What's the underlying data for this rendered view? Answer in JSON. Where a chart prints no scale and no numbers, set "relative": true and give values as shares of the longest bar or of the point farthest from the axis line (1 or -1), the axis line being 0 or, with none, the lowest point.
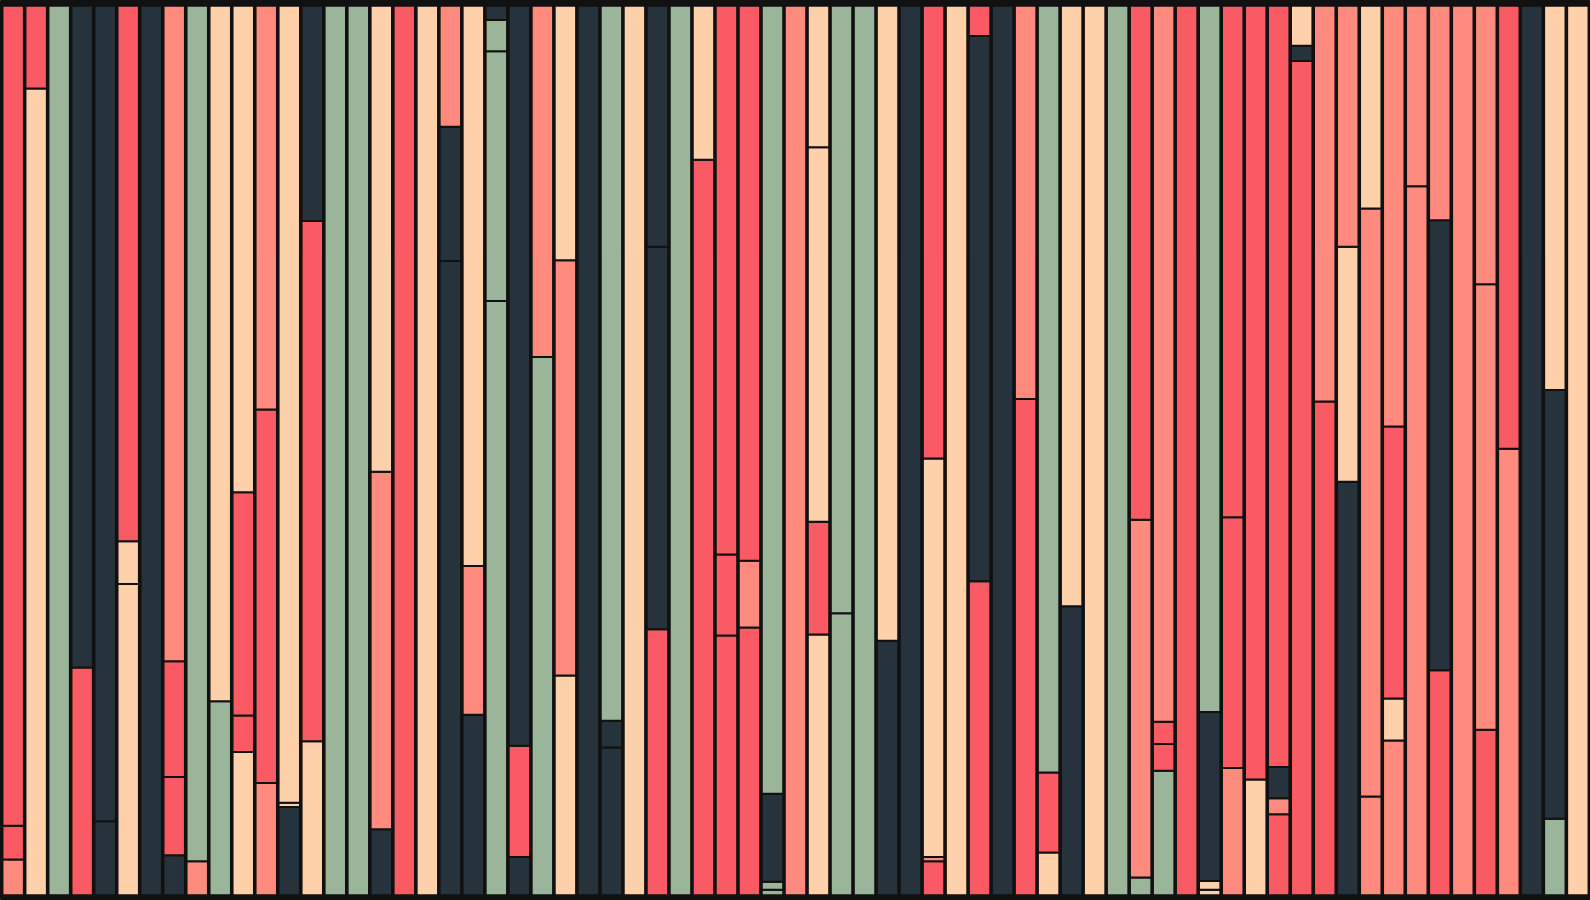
{
  "chart_data": {
    "type": "bar",
    "stacked": true,
    "relative": true,
    "categories": [
      null,
      null,
      null,
      null,
      null,
      null,
      null,
      null,
      null,
      null,
      null,
      null,
      null,
      null,
      null,
      null,
      null,
      null,
      null,
      null,
      null,
      null,
      null,
      null,
      null,
      null,
      null,
      null,
      null,
      null,
      null,
      null,
      null,
      null,
      null,
      null,
      null,
      null,
      null,
      null,
      null,
      null,
      null,
      null,
      null,
      null,
      null,
      null,
      null,
      null,
      null,
      null,
      null,
      null,
      null,
      null,
      null,
      null,
      null,
      null,
      null,
      null,
      null,
      null,
      null,
      null,
      null,
      null,
      null
    ],
    "series": [
      {
        "values": [
          0.04,
          0.907,
          1,
          0.256,
          0.083,
          0.35,
          1,
          0.045,
          0.038,
          0.218,
          0.161,
          0.126,
          0.099,
          0.173,
          1,
          1,
          0.074,
          1,
          1,
          0.713,
          0.203,
          0.668,
          0.043,
          0.605,
          0.247,
          1,
          0.166,
          1,
          0.299,
          1,
          0.827,
          0.292,
          0.301,
          0.006,
          1,
          0.293,
          0.317,
          1,
          0.286,
          1,
          0.038,
          1,
          0.353,
          1,
          0.558,
          0.048,
          0.325,
          1,
          1,
          0.02,
          0.14,
          1,
          0.006,
          0.143,
          0.13,
          0.091,
          0.938,
          0.555,
          0.465,
          0.111,
          0.174,
          0.797,
          0.253,
          1,
          0.186,
          0.502,
          1,
          0.086,
          1
        ],
        "colors": [
          "#fe8b7d",
          "#ffd1aa",
          "#9bb59b",
          "#f95a63",
          "#26333c",
          "#ffd1aa",
          "#26333c",
          "#26333c",
          "#fe8b7d",
          "#9bb59b",
          "#ffd1aa",
          "#fe8b7d",
          "#26333c",
          "#ffd1aa",
          "#9bb59b",
          "#9bb59b",
          "#26333c",
          "#f95a63",
          "#ffd1aa",
          "#26333c",
          "#26333c",
          "#9bb59b",
          "#26333c",
          "#9bb59b",
          "#ffd1aa",
          "#26333c",
          "#26333c",
          "#ffd1aa",
          "#f95a63",
          "#9bb59b",
          "#f95a63",
          "#f95a63",
          "#f95a63",
          "#9bb59b",
          "#fe8b7d",
          "#ffd1aa",
          "#9bb59b",
          "#9bb59b",
          "#26333c",
          "#26333c",
          "#f95a63",
          "#ffd1aa",
          "#f95a63",
          "#26333c",
          "#f95a63",
          "#ffd1aa",
          "#26333c",
          "#ffd1aa",
          "#9bb59b",
          "#9bb59b",
          "#9bb59b",
          "#f95a63",
          "#ffd1aa",
          "#fe8b7d",
          "#ffd1aa",
          "#f95a63",
          "#f95a63",
          "#f95a63",
          "#26333c",
          "#fe8b7d",
          "#fe8b7d",
          "#fe8b7d",
          "#f95a63",
          "#fe8b7d",
          "#f95a63",
          "#fe8b7d",
          "#26333c",
          "#9bb59b",
          "#ffd1aa"
        ]
      },
      {
        "values": [
          0.038,
          0.093,
          null,
          0.744,
          0.917,
          0.048,
          null,
          0.088,
          0.962,
          0.782,
          0.041,
          0.42,
          0.005,
          0.585,
          null,
          null,
          0.402,
          null,
          null,
          0.151,
          0.167,
          0.281,
          0.125,
          0.395,
          0.467,
          null,
          0.03,
          null,
          0.43,
          null,
          0.173,
          0.091,
          0.075,
          0.009,
          null,
          0.127,
          0.683,
          null,
          0.714,
          null,
          0.005,
          null,
          0.613,
          null,
          0.442,
          0.09,
          0.675,
          null,
          null,
          0.402,
          0.03,
          null,
          0.01,
          0.282,
          0.87,
          0.018,
          0.017,
          0.445,
          0.264,
          0.661,
          0.047,
          0.203,
          0.506,
          null,
          0.501,
          0.498,
          null,
          0.482,
          null
        ],
        "colors": [
          "#f95a63",
          "#f95a63",
          null,
          "#26333c",
          "#26333c",
          "#ffd1aa",
          null,
          "#f95a63",
          "#9bb59b",
          "#ffd1aa",
          "#f95a63",
          "#f95a63",
          "#ffd1aa",
          "#f95a63",
          null,
          null,
          "#fe8b7d",
          null,
          null,
          "#26333c",
          "#fe8b7d",
          "#9bb59b",
          "#f95a63",
          "#fe8b7d",
          "#fe8b7d",
          null,
          "#26333c",
          null,
          "#26333c",
          null,
          "#ffd1aa",
          "#f95a63",
          "#fe8b7d",
          "#9bb59b",
          null,
          "#f95a63",
          "#9bb59b",
          null,
          "#ffd1aa",
          null,
          "#fe8b7d",
          null,
          "#26333c",
          null,
          "#fe8b7d",
          "#f95a63",
          "#ffd1aa",
          null,
          null,
          "#fe8b7d",
          "#f95a63",
          null,
          "#ffd1aa",
          "#f95a63",
          "#f95a63",
          "#fe8b7d",
          "#26333c",
          "#fe8b7d",
          "#ffd1aa",
          "#fe8b7d",
          "#ffd1aa",
          "#fe8b7d",
          "#26333c",
          null,
          "#fe8b7d",
          "#f95a63",
          null,
          "#26333c",
          null
        ]
      },
      {
        "values": [
          0.922,
          null,
          null,
          null,
          null,
          0.602,
          null,
          0.13,
          null,
          null,
          0.251,
          0.454,
          0.896,
          0.242,
          null,
          null,
          0.524,
          null,
          null,
          0.136,
          0.63,
          0.035,
          0.832,
          null,
          0.286,
          null,
          0.804,
          null,
          0.271,
          null,
          null,
          0.617,
          0.624,
          0.099,
          null,
          0.421,
          null,
          null,
          null,
          null,
          0.448,
          null,
          0.034,
          null,
          null,
          0.862,
          null,
          null,
          null,
          0.578,
          0.025,
          null,
          0.19,
          0.575,
          null,
          0.035,
          0.045,
          null,
          0.271,
          0.228,
          0.306,
          null,
          0.241,
          null,
          0.313,
          null,
          null,
          0.432,
          null
        ],
        "colors": [
          "#f95a63",
          null,
          null,
          null,
          null,
          "#f95a63",
          null,
          "#f95a63",
          null,
          null,
          "#f95a63",
          "#fe8b7d",
          "#ffd1aa",
          "#26333c",
          null,
          null,
          "#ffd1aa",
          null,
          null,
          "#fe8b7d",
          "#ffd1aa",
          "#9bb59b",
          "#26333c",
          null,
          "#ffd1aa",
          null,
          "#9bb59b",
          null,
          "#26333c",
          null,
          null,
          "#f95a63",
          "#f95a63",
          "#26333c",
          null,
          "#ffd1aa",
          null,
          null,
          null,
          null,
          "#ffd1aa",
          null,
          "#f95a63",
          null,
          null,
          "#9bb59b",
          null,
          null,
          null,
          "#f95a63",
          "#f95a63",
          null,
          "#26333c",
          "#f95a63",
          null,
          "#26333c",
          "#ffd1aa",
          null,
          "#fe8b7d",
          "#ffd1aa",
          "#f95a63",
          null,
          "#fe8b7d",
          null,
          "#fe8b7d",
          null,
          null,
          "#ffd1aa",
          null
        ]
      },
      {
        "values": [
          null,
          null,
          null,
          null,
          null,
          null,
          null,
          0.737,
          null,
          null,
          0.547,
          null,
          null,
          null,
          null,
          null,
          null,
          null,
          null,
          null,
          null,
          0.016,
          null,
          null,
          null,
          null,
          null,
          null,
          null,
          null,
          null,
          null,
          null,
          0.886,
          null,
          0.159,
          null,
          null,
          null,
          null,
          0.509,
          null,
          null,
          null,
          null,
          null,
          null,
          null,
          null,
          null,
          0.805,
          null,
          0.794,
          null,
          null,
          0.856,
          null,
          null,
          null,
          null,
          0.473,
          null,
          null,
          null,
          null,
          null,
          null,
          null,
          null
        ],
        "colors": [
          null,
          null,
          null,
          null,
          null,
          null,
          null,
          "#fe8b7d",
          null,
          null,
          "#ffd1aa",
          null,
          null,
          null,
          null,
          null,
          null,
          null,
          null,
          null,
          null,
          "#26333c",
          null,
          null,
          null,
          null,
          null,
          null,
          null,
          null,
          null,
          null,
          null,
          "#9bb59b",
          null,
          "#ffd1aa",
          null,
          null,
          null,
          null,
          "#f95a63",
          null,
          null,
          null,
          null,
          null,
          null,
          null,
          null,
          null,
          "#fe8b7d",
          null,
          "#9bb59b",
          null,
          null,
          "#f95a63",
          null,
          null,
          null,
          null,
          "#fe8b7d",
          null,
          null,
          null,
          null,
          null,
          null,
          null,
          null
        ]
      }
    ]
  }
}
